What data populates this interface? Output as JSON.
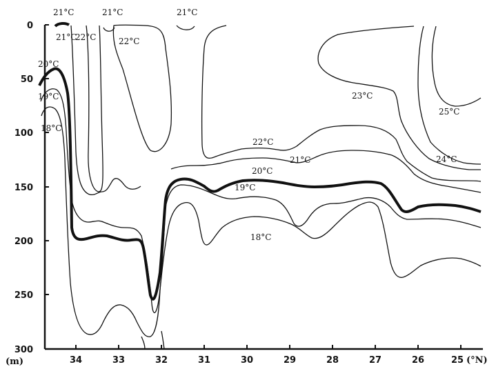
{
  "chart_data": {
    "type": "line",
    "chart_kind": "isotherm depth section",
    "title": "",
    "xlabel": "(°N)",
    "ylabel": "(m)",
    "xlim": [
      34.9,
      24.6
    ],
    "ylim": [
      0,
      300
    ],
    "y_inverted": true,
    "grid": false,
    "x_ticks": [
      34,
      33,
      32,
      31,
      30,
      29,
      28,
      27,
      26,
      25
    ],
    "x_tick_labels": [
      "34",
      "33",
      "32",
      "31",
      "30",
      "29",
      "28",
      "27",
      "26",
      "25"
    ],
    "y_ticks": [
      0,
      50,
      100,
      150,
      200,
      250,
      300
    ],
    "y_tick_labels": [
      "0",
      "50",
      "100",
      "150",
      "200",
      "250",
      "300"
    ],
    "x_unit_label": "(°N)",
    "y_unit_label": "(m)",
    "contours": [
      {
        "label": "21°C",
        "lat": 34.5,
        "depth": 0
      },
      {
        "label": "21°C",
        "lat": 33.0,
        "depth": 0
      },
      {
        "label": "21°C",
        "lat": 31.4,
        "depth": 0
      },
      {
        "label": "21°C",
        "lat": 34.2,
        "depth": 10
      },
      {
        "label": "22°C",
        "lat": 33.8,
        "depth": 10
      },
      {
        "label": "22°C",
        "lat": 32.6,
        "depth": 15
      },
      {
        "label": "20°C",
        "lat": 34.6,
        "depth": 38
      },
      {
        "label": "19°C",
        "lat": 34.75,
        "depth": 68
      },
      {
        "label": "18°C",
        "lat": 34.65,
        "depth": 95
      },
      {
        "label": "23°C",
        "lat": 28.2,
        "depth": 70
      },
      {
        "label": "25°C",
        "lat": 25.2,
        "depth": 85
      },
      {
        "label": "22°C",
        "lat": 30.0,
        "depth": 89
      },
      {
        "label": "21°C",
        "lat": 29.3,
        "depth": 108
      },
      {
        "label": "24°C",
        "lat": 25.4,
        "depth": 115
      },
      {
        "label": "20°C",
        "lat": 29.7,
        "depth": 125
      },
      {
        "label": "19°C",
        "lat": 30.0,
        "depth": 138
      },
      {
        "label": "18°C",
        "lat": 30.0,
        "depth": 190
      }
    ]
  }
}
